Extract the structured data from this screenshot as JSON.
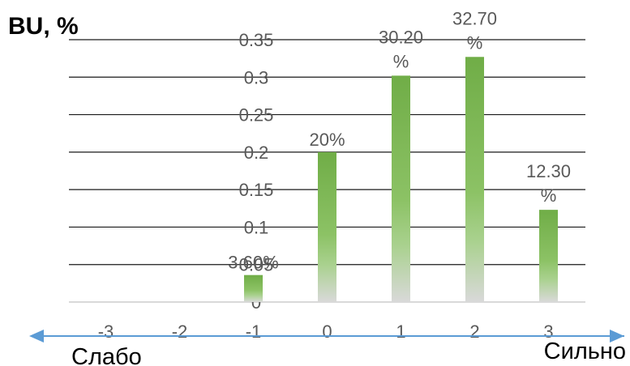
{
  "chart_data": {
    "type": "bar",
    "title": "BU, %",
    "xlabel": "",
    "ylabel": "",
    "ylim": [
      0,
      0.37
    ],
    "yticks": [
      "0",
      "0.05",
      "0.1",
      "0.15",
      "0.2",
      "0.25",
      "0.3",
      "0.35"
    ],
    "ytick_values": [
      0,
      0.05,
      0.1,
      0.15,
      0.2,
      0.25,
      0.3,
      0.35
    ],
    "categories": [
      "-3",
      "-2",
      "-1",
      "0",
      "1",
      "2",
      "3"
    ],
    "values": [
      0,
      0,
      0.036,
      0.2,
      0.302,
      0.327,
      0.123
    ],
    "data_labels": [
      "",
      "",
      "3.60%",
      "20%",
      "30.20%",
      "32.70%",
      "12.30%"
    ],
    "grid": true,
    "bar_color_top": "#70ad47",
    "bar_color_bottom": "#d9d9d9",
    "axis_arrow_color": "#5b9bd5",
    "axis_left_label": "Слабо",
    "axis_right_label": "Сильно"
  }
}
